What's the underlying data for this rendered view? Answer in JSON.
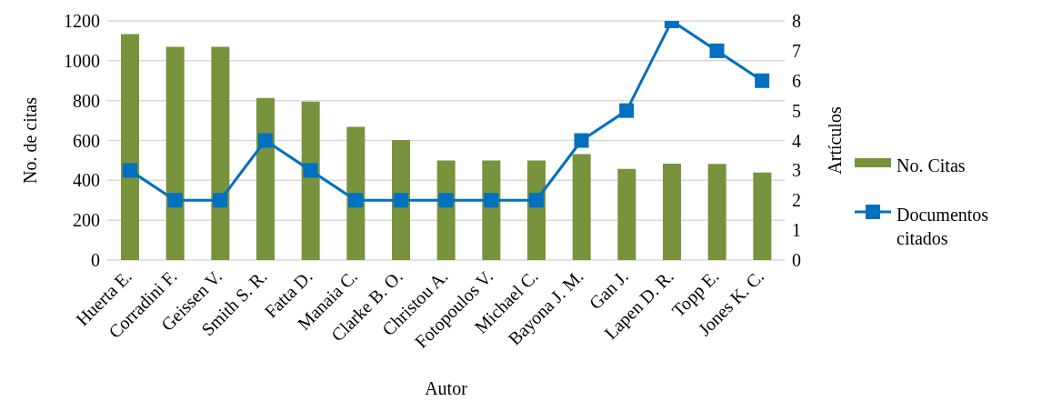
{
  "chart_data": {
    "type": "bar",
    "xlabel": "Autor",
    "ylabel": "No. de citas",
    "y2label": "Artículos",
    "categories": [
      "Huerta E.",
      "Corradini F.",
      "Geissen V.",
      "Smith S. R.",
      "Fatta D.",
      "Manaia C.",
      "Clarke B. O.",
      "Christou A.",
      "Fotopoulos V.",
      "Michael C.",
      "Bayona J. M.",
      "Gan J.",
      "Lapen D. R.",
      "Topp E.",
      "Jones K. C."
    ],
    "series": [
      {
        "name": "No. Citas",
        "color": "#77933c",
        "values": [
          1134,
          1070,
          1070,
          813,
          795,
          668,
          602,
          500,
          500,
          500,
          532,
          457,
          484,
          482,
          439
        ]
      },
      {
        "name": "Documentos citados",
        "type": "line",
        "axis": "y2",
        "color": "#0070c0",
        "marker": "square",
        "values": [
          3,
          2,
          2,
          4,
          3,
          2,
          2,
          2,
          2,
          2,
          4,
          5,
          8,
          7,
          6
        ]
      }
    ],
    "ylim": [
      0,
      1200
    ],
    "yticks": [
      0,
      200,
      400,
      600,
      800,
      1000,
      1200
    ],
    "y2lim": [
      0,
      8
    ],
    "y2ticks": [
      0,
      1,
      2,
      3,
      4,
      5,
      6,
      7,
      8
    ],
    "grid": "y",
    "legend": "right"
  }
}
